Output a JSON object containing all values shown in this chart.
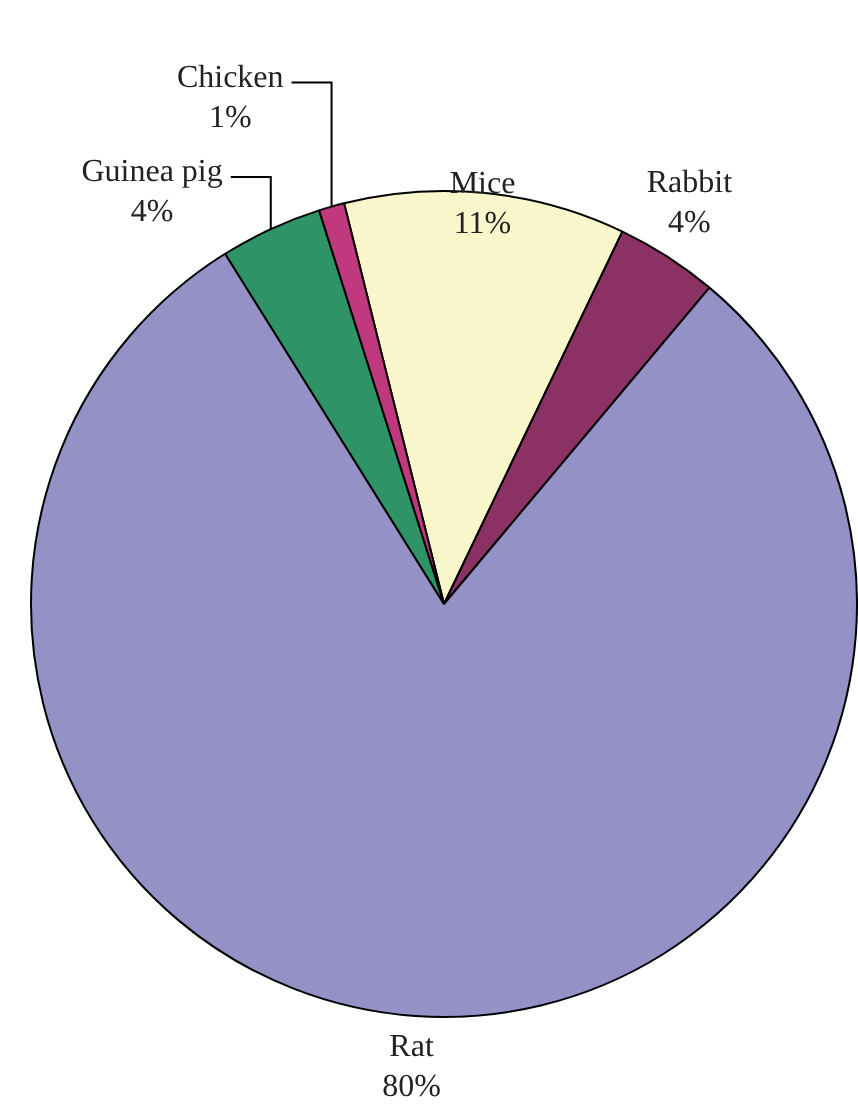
{
  "chart_data": {
    "type": "pie",
    "categories": [
      "Mice",
      "Rabbit",
      "Rat",
      "Guinea pig",
      "Chicken"
    ],
    "values": [
      11,
      4,
      80,
      4,
      1
    ],
    "value_labels": [
      "11%",
      "4%",
      "80%",
      "4%",
      "1%"
    ],
    "colors": [
      "#faf6cc",
      "#8c3164",
      "#9391c6",
      "#2e9467",
      "#c0397f"
    ],
    "legend": false
  }
}
